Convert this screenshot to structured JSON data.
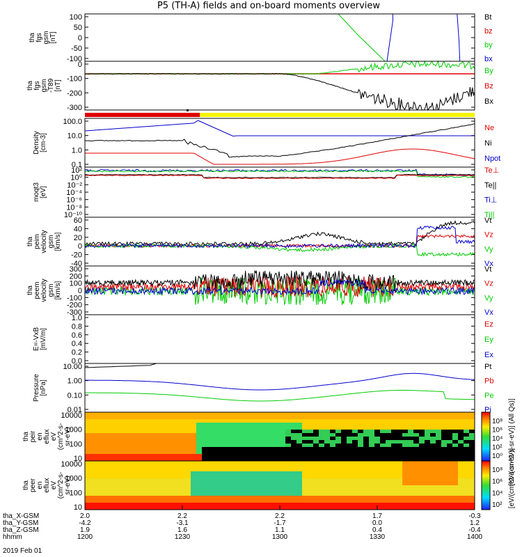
{
  "title": "P5 (TH-A) fields and on-board moments overview",
  "colors": {
    "black": "#000000",
    "red": "#e00000",
    "green": "#00cc00",
    "blue": "#0000cc",
    "yellow": "#f5f500"
  },
  "chart_data": [
    {
      "type": "line",
      "name": "fgs-gsm",
      "ylabel_lines": [
        "tha",
        "fgs",
        "gsm",
        "[nT]"
      ],
      "yticks": [
        "100",
        "50",
        "0",
        "-50",
        "-100"
      ],
      "ylim": [
        -100,
        100
      ],
      "series": [
        {
          "name": "Bt",
          "color": "#000000"
        },
        {
          "name": "bz",
          "color": "#e00000"
        },
        {
          "name": "by",
          "color": "#00cc00"
        },
        {
          "name": "bx",
          "color": "#0000cc"
        }
      ]
    },
    {
      "type": "line",
      "name": "fgs-gsm-minus-t89",
      "ylabel_lines": [
        "tha",
        "fgs",
        "gsm",
        "-T89",
        "[nT]"
      ],
      "yticks": [
        "0",
        "-100",
        "-200",
        "-300"
      ],
      "ylim": [
        -350,
        30
      ],
      "series": [
        {
          "name": "By",
          "color": "#00cc00"
        },
        {
          "name": "Bz",
          "color": "#e00000"
        },
        {
          "name": "Bx",
          "color": "#000000"
        }
      ]
    },
    {
      "type": "line",
      "name": "density",
      "ylabel_lines": [
        "Density",
        "[cm-3]"
      ],
      "yticks": [
        "100.0",
        "10.0",
        "1.0",
        "0.1"
      ],
      "log": true,
      "series": [
        {
          "name": "Ne",
          "color": "#e00000"
        },
        {
          "name": "Ni",
          "color": "#000000"
        },
        {
          "name": "Npot",
          "color": "#0000cc"
        }
      ]
    },
    {
      "type": "line",
      "name": "temperature",
      "ylabel_lines": [
        "moqt3",
        "[eV]"
      ],
      "yticks": [
        "10²",
        "10⁰",
        "10⁻²",
        "10⁻⁴",
        "10⁻⁶",
        "10⁻⁸",
        "10⁻¹⁰"
      ],
      "log": true,
      "series": [
        {
          "name": "Te⊥",
          "color": "#e00000"
        },
        {
          "name": "Te||",
          "color": "#000000"
        },
        {
          "name": "Ti⊥",
          "color": "#0000cc"
        },
        {
          "name": "Ti||",
          "color": "#00cc00"
        }
      ]
    },
    {
      "type": "line",
      "name": "peim-velocity",
      "ylabel_lines": [
        "tha",
        "peim",
        "velocity",
        "gsm",
        "[km/s]"
      ],
      "yticks": [
        "60",
        "40",
        "20",
        "0",
        "-20",
        "-40"
      ],
      "ylim": [
        -40,
        60
      ],
      "series": [
        {
          "name": "Vt",
          "color": "#000000"
        },
        {
          "name": "Vz",
          "color": "#e00000"
        },
        {
          "name": "Vy",
          "color": "#00cc00"
        },
        {
          "name": "Vx",
          "color": "#0000cc"
        }
      ]
    },
    {
      "type": "line",
      "name": "peem-velocity",
      "ylabel_lines": [
        "tha",
        "peem",
        "velocity",
        "gsm",
        "[km/s]"
      ],
      "yticks": [
        "300",
        "200",
        "100",
        "0",
        "-100",
        "-200",
        "-300"
      ],
      "ylim": [
        -300,
        300
      ],
      "series": [
        {
          "name": "Vt",
          "color": "#000000"
        },
        {
          "name": "Vz",
          "color": "#e00000"
        },
        {
          "name": "Vy",
          "color": "#00cc00"
        },
        {
          "name": "Vx",
          "color": "#0000cc"
        }
      ]
    },
    {
      "type": "line",
      "name": "e-field",
      "ylabel_lines": [
        "E=-VxB",
        "[mV/m]"
      ],
      "yticks": [
        "1.0",
        "0.8",
        "0.6",
        "0.4",
        "0.2",
        "0.0"
      ],
      "ylim": [
        0,
        1
      ],
      "series": [
        {
          "name": "Ez",
          "color": "#e00000"
        },
        {
          "name": "Ey",
          "color": "#00cc00"
        },
        {
          "name": "Ex",
          "color": "#0000cc"
        }
      ]
    },
    {
      "type": "line",
      "name": "pressure",
      "ylabel_lines": [
        "Pressure",
        "[nPa]"
      ],
      "yticks": [
        "10.00",
        "1.00",
        "0.10",
        "0.01"
      ],
      "log": true,
      "series": [
        {
          "name": "Pt",
          "color": "#000000"
        },
        {
          "name": "Pb",
          "color": "#e00000"
        },
        {
          "name": "Pe",
          "color": "#00cc00"
        },
        {
          "name": "Pi",
          "color": "#0000cc"
        }
      ]
    },
    {
      "type": "heatmap",
      "name": "peir-en-eflux",
      "ylabel_lines": [
        "tha",
        "peir",
        "en",
        "eflux",
        "eV",
        "(cm^2-s-",
        "sr-eV)"
      ],
      "yticks": [
        "10000",
        "1000",
        "100",
        "10"
      ],
      "log": true
    },
    {
      "type": "heatmap",
      "name": "peer-en-eflux",
      "ylabel_lines": [
        "tha",
        "peer",
        "en",
        "eflux",
        "eV",
        "(cm^2-s-",
        "sr-eV)"
      ],
      "yticks": [
        "10000",
        "1000",
        "100",
        "10"
      ],
      "log": true
    }
  ],
  "colorbars": [
    {
      "ticks": [
        "10⁸",
        "10⁶",
        "10⁴",
        "10²",
        "10⁰"
      ],
      "label": "[eV/(cm^2-s-sr-eV)] (All Qs)]"
    },
    {
      "ticks": [
        "10⁸",
        "10⁶",
        "10⁴",
        "10²"
      ],
      "label": "[eV/(cm^2-s-sr-eV)]"
    }
  ],
  "mode_bar": {
    "segments": [
      {
        "color": "#e00000",
        "from": 0,
        "to": 0.295
      },
      {
        "color": "#f5f500",
        "from": 0.295,
        "to": 1
      }
    ]
  },
  "x_axis": {
    "rows": [
      {
        "label": "tha_X-GSM",
        "values": [
          "2.0",
          "2.2",
          "2.2",
          "1.7",
          "-0.3"
        ]
      },
      {
        "label": "tha_Y-GSM",
        "values": [
          "-4.2",
          "-3.1",
          "-1.7",
          "0.0",
          "1.2"
        ]
      },
      {
        "label": "tha_Z-GSM",
        "values": [
          "1.9",
          "1.6",
          "1.1",
          "0.4",
          "-0.4"
        ]
      },
      {
        "label": "hhmm",
        "values": [
          "1200",
          "1230",
          "1300",
          "1330",
          "1400"
        ]
      }
    ],
    "date": "2019 Feb 01"
  }
}
